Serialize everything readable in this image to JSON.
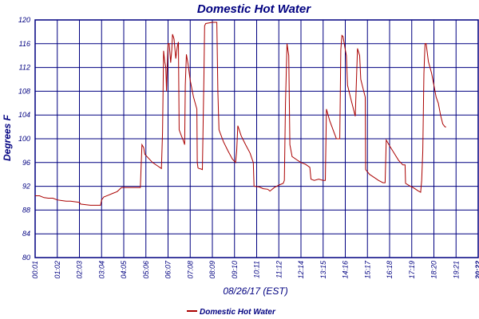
{
  "chart_data": {
    "type": "line",
    "title": "Domestic Hot Water",
    "xlabel": "08/26/17 (EST)",
    "ylabel": "Degrees F",
    "ylim": [
      80,
      120
    ],
    "yticks": [
      80,
      84,
      88,
      92,
      96,
      100,
      104,
      108,
      112,
      116,
      120
    ],
    "xticks": [
      "00:01",
      "01:02",
      "02:03",
      "03:04",
      "04:05",
      "05:06",
      "06:07",
      "07:08",
      "08:09",
      "09:10",
      "10:11",
      "11:12",
      "12:14",
      "13:15",
      "14:16",
      "15:17",
      "16:18",
      "17:19",
      "18:20",
      "19:21",
      "20:22"
    ],
    "grid": true,
    "legend_position": "bottom-left",
    "series": [
      {
        "name": "Domestic Hot Water",
        "color": "#aa0000",
        "points": [
          [
            0.0,
            90.4
          ],
          [
            0.2,
            90.4
          ],
          [
            0.4,
            90.1
          ],
          [
            0.6,
            90.0
          ],
          [
            0.8,
            90.0
          ],
          [
            1.0,
            89.7
          ],
          [
            1.2,
            89.6
          ],
          [
            1.4,
            89.5
          ],
          [
            1.6,
            89.5
          ],
          [
            1.8,
            89.4
          ],
          [
            2.0,
            89.3
          ],
          [
            2.05,
            89.0
          ],
          [
            2.3,
            88.9
          ],
          [
            2.5,
            88.8
          ],
          [
            2.7,
            88.8
          ],
          [
            2.95,
            88.8
          ],
          [
            3.0,
            89.7
          ],
          [
            3.1,
            90.2
          ],
          [
            3.3,
            90.5
          ],
          [
            3.5,
            90.8
          ],
          [
            3.7,
            91.1
          ],
          [
            3.9,
            91.8
          ],
          [
            4.1,
            91.8
          ],
          [
            4.3,
            91.8
          ],
          [
            4.5,
            91.8
          ],
          [
            4.75,
            91.8
          ],
          [
            4.82,
            99.0
          ],
          [
            4.9,
            98.5
          ],
          [
            4.95,
            97.4
          ],
          [
            5.1,
            96.8
          ],
          [
            5.3,
            96.0
          ],
          [
            5.5,
            95.5
          ],
          [
            5.7,
            95.0
          ],
          [
            5.75,
            101.0
          ],
          [
            5.8,
            114.8
          ],
          [
            5.85,
            113.0
          ],
          [
            5.9,
            112.0
          ],
          [
            5.93,
            108.0
          ],
          [
            5.97,
            113.0
          ],
          [
            6.0,
            116.0
          ],
          [
            6.05,
            116.0
          ],
          [
            6.12,
            112.8
          ],
          [
            6.17,
            115.0
          ],
          [
            6.2,
            117.6
          ],
          [
            6.27,
            116.8
          ],
          [
            6.35,
            113.5
          ],
          [
            6.42,
            115.6
          ],
          [
            6.47,
            116.3
          ],
          [
            6.5,
            101.5
          ],
          [
            6.6,
            100.5
          ],
          [
            6.7,
            99.6
          ],
          [
            6.75,
            99.0
          ],
          [
            6.78,
            109.0
          ],
          [
            6.83,
            114.2
          ],
          [
            6.9,
            112.6
          ],
          [
            7.0,
            109.8
          ],
          [
            7.15,
            107.0
          ],
          [
            7.3,
            105.0
          ],
          [
            7.32,
            96.0
          ],
          [
            7.35,
            95.1
          ],
          [
            7.4,
            95.0
          ],
          [
            7.5,
            94.9
          ],
          [
            7.55,
            94.8
          ],
          [
            7.62,
            111.0
          ],
          [
            7.65,
            119.0
          ],
          [
            7.7,
            119.4
          ],
          [
            8.0,
            119.6
          ],
          [
            8.2,
            119.6
          ],
          [
            8.25,
            108.0
          ],
          [
            8.3,
            101.5
          ],
          [
            8.5,
            99.5
          ],
          [
            8.7,
            98.0
          ],
          [
            8.9,
            96.6
          ],
          [
            9.05,
            96.0
          ],
          [
            9.1,
            98.0
          ],
          [
            9.15,
            102.2
          ],
          [
            9.3,
            100.5
          ],
          [
            9.5,
            99.0
          ],
          [
            9.7,
            97.6
          ],
          [
            9.85,
            96.0
          ],
          [
            9.88,
            92.0
          ],
          [
            10.1,
            91.9
          ],
          [
            10.3,
            91.6
          ],
          [
            10.5,
            91.5
          ],
          [
            10.6,
            91.2
          ],
          [
            10.8,
            91.8
          ],
          [
            11.0,
            92.2
          ],
          [
            11.2,
            92.5
          ],
          [
            11.25,
            93.0
          ],
          [
            11.3,
            106.0
          ],
          [
            11.37,
            116.0
          ],
          [
            11.45,
            114.0
          ],
          [
            11.5,
            99.0
          ],
          [
            11.6,
            97.0
          ],
          [
            11.8,
            96.5
          ],
          [
            12.0,
            96.0
          ],
          [
            12.2,
            95.7
          ],
          [
            12.4,
            95.2
          ],
          [
            12.45,
            93.2
          ],
          [
            12.6,
            93.0
          ],
          [
            12.8,
            93.2
          ],
          [
            13.0,
            93.0
          ],
          [
            13.1,
            93.0
          ],
          [
            13.15,
            105.0
          ],
          [
            13.3,
            103.0
          ],
          [
            13.5,
            101.0
          ],
          [
            13.6,
            100.0
          ],
          [
            13.75,
            100.0
          ],
          [
            13.8,
            115.0
          ],
          [
            13.85,
            117.4
          ],
          [
            13.9,
            117.2
          ],
          [
            14.0,
            115.0
          ],
          [
            14.05,
            114.0
          ],
          [
            14.1,
            109.0
          ],
          [
            14.3,
            106.0
          ],
          [
            14.45,
            103.8
          ],
          [
            14.55,
            115.2
          ],
          [
            14.65,
            114.0
          ],
          [
            14.7,
            110.0
          ],
          [
            14.9,
            107.0
          ],
          [
            14.92,
            94.8
          ],
          [
            15.1,
            94.0
          ],
          [
            15.3,
            93.5
          ],
          [
            15.5,
            93.0
          ],
          [
            15.7,
            92.6
          ],
          [
            15.8,
            92.6
          ],
          [
            15.85,
            99.8
          ],
          [
            16.0,
            98.8
          ],
          [
            16.2,
            97.6
          ],
          [
            16.4,
            96.4
          ],
          [
            16.6,
            95.6
          ],
          [
            16.7,
            95.6
          ],
          [
            16.72,
            92.5
          ],
          [
            16.9,
            92.1
          ],
          [
            17.1,
            91.7
          ],
          [
            17.3,
            91.2
          ],
          [
            17.4,
            91.0
          ],
          [
            17.45,
            93.0
          ],
          [
            17.5,
            98.0
          ],
          [
            17.55,
            111.0
          ],
          [
            17.6,
            116.0
          ],
          [
            17.65,
            116.0
          ],
          [
            17.75,
            113.0
          ],
          [
            17.9,
            111.0
          ],
          [
            18.0,
            109.0
          ],
          [
            18.1,
            107.0
          ],
          [
            18.2,
            106.0
          ],
          [
            18.3,
            104.0
          ],
          [
            18.4,
            102.5
          ],
          [
            18.5,
            102.0
          ],
          [
            18.55,
            102.0
          ]
        ]
      }
    ]
  }
}
